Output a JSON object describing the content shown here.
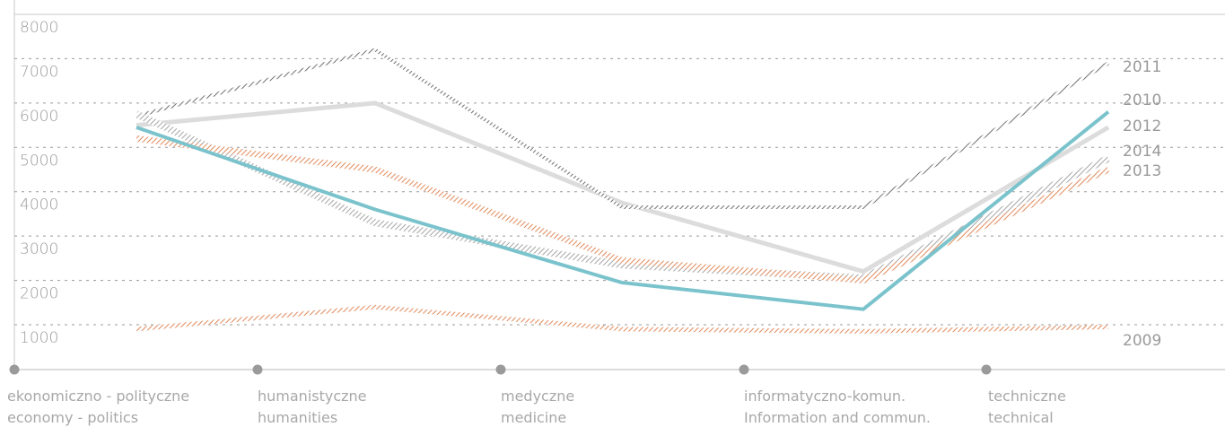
{
  "chart_data": {
    "type": "line",
    "categories": [
      [
        "ekonomiczno - polityczne",
        "economy - politics"
      ],
      [
        "humanistyczne",
        "humanities"
      ],
      [
        "medyczne",
        "medicine"
      ],
      [
        "informatyczno-komun.",
        "Information and commun."
      ],
      [
        "techniczne",
        "technical"
      ]
    ],
    "y_ticks": [
      "1000",
      "2000",
      "3000",
      "4000",
      "5000",
      "6000",
      "7000",
      "8000"
    ],
    "ylim": [
      500,
      8000
    ],
    "grid": true,
    "series": [
      {
        "name": "2009",
        "values": [
          900,
          1400,
          900,
          850,
          950
        ],
        "color": "#e0895a",
        "style": "hatched-thin"
      },
      {
        "name": "2010",
        "values": [
          5500,
          6000,
          3750,
          2200,
          5450
        ],
        "color": "#d9d9d9",
        "style": "solid"
      },
      {
        "name": "2011",
        "values": [
          5700,
          7200,
          3650,
          3650,
          6900
        ],
        "color": "#7f7f7f",
        "style": "hatched"
      },
      {
        "name": "2012",
        "values": [
          5450,
          3600,
          1950,
          1350,
          5800
        ],
        "color": "#7bc3cc",
        "style": "solid"
      },
      {
        "name": "2013",
        "values": [
          5200,
          4500,
          2450,
          2000,
          4500
        ],
        "color": "#e0895a",
        "style": "hatched"
      },
      {
        "name": "2014",
        "values": [
          5750,
          3300,
          2350,
          2050,
          4750
        ],
        "color": "#b5b5b5",
        "style": "hatched"
      }
    ]
  }
}
